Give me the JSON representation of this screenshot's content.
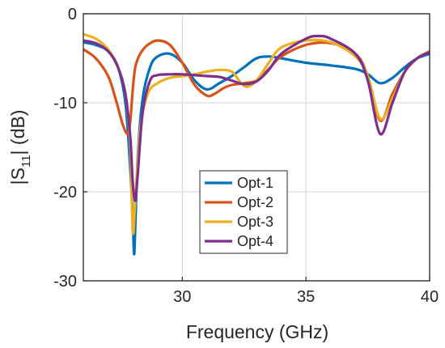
{
  "chart_data": {
    "type": "line",
    "xlabel": "Frequency (GHz)",
    "ylabel": {
      "pre": "|S",
      "sub": "11",
      "post": "| (dB)"
    },
    "xlim": [
      26,
      40
    ],
    "ylim": [
      -30,
      0
    ],
    "xticks": [
      30,
      35,
      40
    ],
    "xtick_labels": [
      "30",
      "35",
      "40"
    ],
    "yticks": [
      0,
      -10,
      -20,
      -30
    ],
    "ytick_labels": [
      "0",
      "-10",
      "-20",
      "-30"
    ],
    "grid": true,
    "legend_position": "center-bottom",
    "series": [
      {
        "name": "Opt-1",
        "color": "#0072BD",
        "x": [
          26,
          26.5,
          27,
          27.4,
          27.7,
          27.9,
          28.0,
          28.05,
          28.1,
          28.2,
          28.4,
          28.7,
          29.0,
          29.5,
          30.0,
          30.5,
          31.0,
          31.5,
          32.0,
          32.5,
          33.0,
          33.5,
          34.0,
          35.0,
          36.0,
          37.0,
          37.5,
          38.0,
          38.5,
          39.0,
          39.5,
          40.0
        ],
        "y": [
          -3.2,
          -3.5,
          -4.2,
          -6.0,
          -10.0,
          -17.5,
          -23.0,
          -27.0,
          -24.0,
          -16.0,
          -9.5,
          -6.0,
          -4.8,
          -4.5,
          -5.5,
          -7.5,
          -8.5,
          -7.8,
          -7.0,
          -6.0,
          -5.0,
          -4.8,
          -5.0,
          -5.5,
          -5.8,
          -6.2,
          -6.8,
          -7.8,
          -7.2,
          -6.0,
          -5.0,
          -4.5
        ]
      },
      {
        "name": "Opt-2",
        "color": "#D95319",
        "x": [
          26,
          26.5,
          27,
          27.3,
          27.6,
          27.8,
          27.9,
          28.0,
          28.1,
          28.3,
          28.6,
          29.0,
          29.5,
          30.0,
          30.5,
          31.0,
          31.3,
          31.7,
          32.0,
          32.5,
          33.0,
          33.5,
          34.0,
          35.0,
          36.0,
          37.0,
          37.5,
          38.0,
          38.5,
          39.0,
          39.5,
          40.0
        ],
        "y": [
          -4.0,
          -5.0,
          -7.0,
          -9.5,
          -12.5,
          -13.5,
          -12.0,
          -8.5,
          -6.0,
          -4.5,
          -3.5,
          -3.0,
          -3.5,
          -5.5,
          -8.0,
          -9.2,
          -9.0,
          -8.3,
          -8.0,
          -7.8,
          -7.5,
          -6.2,
          -4.8,
          -3.5,
          -3.3,
          -4.5,
          -7.0,
          -12.0,
          -9.0,
          -6.5,
          -5.0,
          -4.2
        ]
      },
      {
        "name": "Opt-3",
        "color": "#EDB120",
        "x": [
          26,
          26.5,
          27,
          27.4,
          27.7,
          27.9,
          28.0,
          28.1,
          28.3,
          28.6,
          29.0,
          29.5,
          30.0,
          30.5,
          31.0,
          31.5,
          32.0,
          32.3,
          32.6,
          33.0,
          33.5,
          34.0,
          35.0,
          36.0,
          37.0,
          37.5,
          38.0,
          38.5,
          39.0,
          39.5,
          40.0
        ],
        "y": [
          -2.3,
          -2.8,
          -4.0,
          -6.0,
          -9.0,
          -15.0,
          -24.5,
          -21.0,
          -13.0,
          -9.0,
          -7.8,
          -7.2,
          -7.0,
          -6.8,
          -6.5,
          -6.3,
          -6.5,
          -7.5,
          -8.2,
          -7.5,
          -5.5,
          -3.8,
          -3.0,
          -3.2,
          -4.8,
          -7.0,
          -11.8,
          -9.5,
          -6.5,
          -5.0,
          -4.2
        ]
      },
      {
        "name": "Opt-4",
        "color": "#7E2F8E",
        "x": [
          26,
          26.5,
          27,
          27.4,
          27.7,
          27.9,
          28.0,
          28.1,
          28.2,
          28.4,
          28.7,
          29.0,
          29.5,
          30.0,
          30.5,
          31.0,
          31.5,
          32.0,
          32.5,
          33.0,
          33.5,
          34.0,
          35.0,
          35.5,
          36.0,
          37.0,
          37.5,
          38.0,
          38.5,
          39.0,
          39.5,
          40.0
        ],
        "y": [
          -3.0,
          -3.3,
          -4.2,
          -6.0,
          -9.0,
          -14.0,
          -19.0,
          -21.0,
          -18.0,
          -11.0,
          -7.5,
          -6.9,
          -6.8,
          -6.8,
          -6.9,
          -7.0,
          -7.1,
          -7.5,
          -7.9,
          -7.6,
          -6.3,
          -4.5,
          -2.8,
          -2.5,
          -2.8,
          -4.5,
          -7.5,
          -13.5,
          -10.0,
          -6.5,
          -5.0,
          -4.3
        ]
      }
    ]
  }
}
